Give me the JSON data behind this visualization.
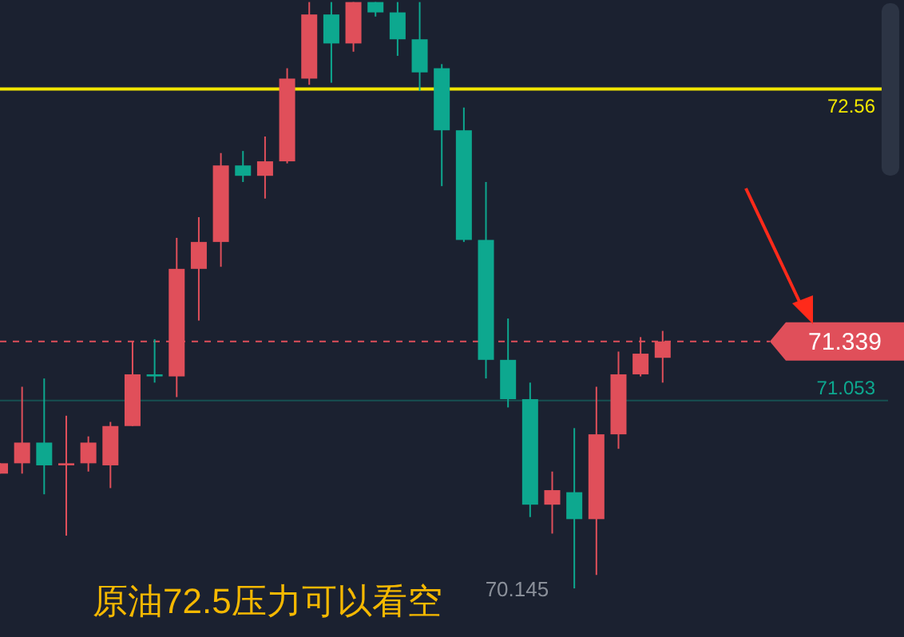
{
  "chart_data": {
    "type": "candlestick",
    "title": "原油72.5压力可以看空",
    "categories": [
      null,
      null,
      null,
      null,
      null,
      null,
      null,
      null,
      null,
      null,
      null,
      null,
      null,
      null,
      null,
      null,
      null,
      null,
      null,
      null,
      null,
      null,
      null,
      null,
      null,
      null,
      null,
      null,
      null,
      null,
      null
    ],
    "ohlc": [
      [
        70.7,
        70.75,
        70.7,
        70.75
      ],
      [
        70.75,
        71.12,
        70.7,
        70.85
      ],
      [
        70.85,
        71.16,
        70.6,
        70.74
      ],
      [
        70.74,
        70.98,
        70.4,
        70.75
      ],
      [
        70.75,
        70.88,
        70.71,
        70.85
      ],
      [
        70.74,
        70.95,
        70.63,
        70.93
      ],
      [
        70.93,
        71.34,
        70.93,
        71.18
      ],
      [
        71.18,
        71.35,
        71.14,
        71.17
      ],
      [
        71.17,
        71.84,
        71.07,
        71.69
      ],
      [
        71.69,
        71.94,
        71.44,
        71.82
      ],
      [
        71.82,
        72.25,
        71.7,
        72.19
      ],
      [
        72.19,
        72.26,
        72.11,
        72.14
      ],
      [
        72.14,
        72.33,
        72.03,
        72.21
      ],
      [
        72.21,
        72.66,
        72.2,
        72.61
      ],
      [
        72.61,
        72.98,
        72.58,
        72.92
      ],
      [
        72.92,
        72.98,
        72.59,
        72.78
      ],
      [
        72.78,
        72.98,
        72.74,
        72.98
      ],
      [
        72.98,
        72.98,
        72.91,
        72.93
      ],
      [
        72.93,
        72.98,
        72.72,
        72.8
      ],
      [
        72.8,
        72.98,
        72.55,
        72.64
      ],
      [
        72.66,
        72.68,
        72.09,
        72.36
      ],
      [
        72.36,
        72.47,
        71.82,
        71.83
      ],
      [
        71.83,
        72.11,
        71.16,
        71.25
      ],
      [
        71.25,
        71.45,
        71.02,
        71.06
      ],
      [
        71.06,
        71.14,
        70.49,
        70.55
      ],
      [
        70.55,
        70.71,
        70.41,
        70.62
      ],
      [
        70.61,
        70.92,
        70.145,
        70.48
      ],
      [
        70.48,
        71.12,
        70.21,
        70.89
      ],
      [
        70.89,
        71.29,
        70.82,
        71.18
      ],
      [
        71.18,
        71.36,
        71.17,
        71.28
      ],
      [
        71.26,
        71.39,
        71.14,
        71.339
      ]
    ],
    "colors": [
      "#e04f5a",
      "#e04f5a",
      "#0da88f",
      "#e04f5a",
      "#e04f5a",
      "#e04f5a",
      "#e04f5a",
      "#0da88f",
      "#e04f5a",
      "#e04f5a",
      "#e04f5a",
      "#0da88f",
      "#e04f5a",
      "#e04f5a",
      "#e04f5a",
      "#0da88f",
      "#e04f5a",
      "#0da88f",
      "#0da88f",
      "#0da88f",
      "#0da88f",
      "#0da88f",
      "#0da88f",
      "#0da88f",
      "#0da88f",
      "#e04f5a",
      "#0da88f",
      "#e04f5a",
      "#e04f5a",
      "#e04f5a",
      "#e04f5a"
    ],
    "ylim": [
      69.91,
      72.99
    ],
    "ref_lines": [
      {
        "axis": "y",
        "value": 72.56,
        "label": "72.56",
        "color": "#f2e600",
        "line_style": "solid"
      },
      {
        "axis": "y",
        "value": 71.339,
        "label": "71.339",
        "color": "#e04f5a",
        "line_style": "dashed"
      },
      {
        "axis": "y",
        "value": 71.053,
        "label": "71.053",
        "color": "#0da88f",
        "line_style": "solid"
      }
    ],
    "annotations": [
      "70.145"
    ]
  }
}
